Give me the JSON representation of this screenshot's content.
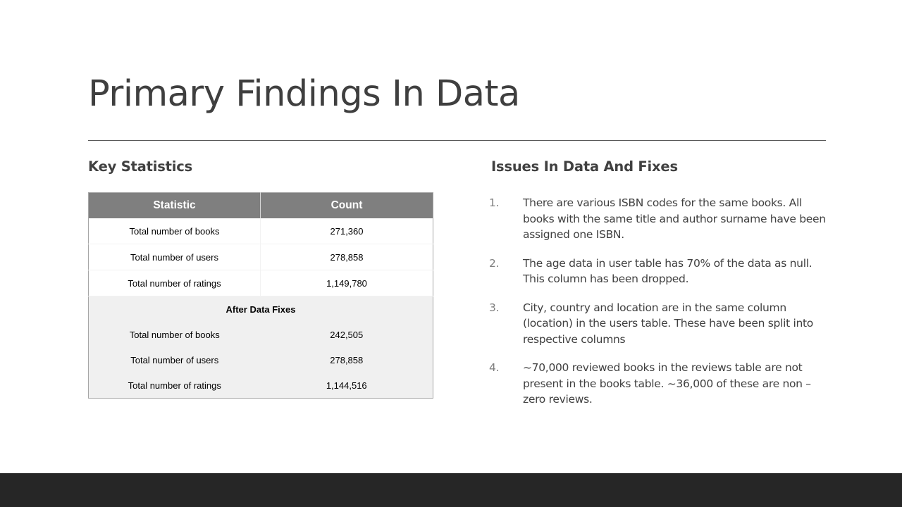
{
  "slide": {
    "title": "Primary Findings In Data"
  },
  "left": {
    "heading": "Key Statistics",
    "table": {
      "headers": [
        "Statistic",
        "Count"
      ],
      "before_rows": [
        {
          "label": "Total number  of books",
          "count": "271,360"
        },
        {
          "label": "Total number  of users",
          "count": "278,858"
        },
        {
          "label": "Total number  of ratings",
          "count": "1,149,780"
        }
      ],
      "subheading": "After Data Fixes",
      "after_rows": [
        {
          "label": "Total number  of books",
          "count": "242,505"
        },
        {
          "label": "Total number  of users",
          "count": "278,858"
        },
        {
          "label": "Total number  of ratings",
          "count": "1,144,516"
        }
      ]
    }
  },
  "right": {
    "heading": "Issues In Data And Fixes",
    "issues": [
      {
        "num": "1.",
        "text": "There are various ISBN codes for the same books. All books with the same title and author surname have been assigned one ISBN."
      },
      {
        "num": "2.",
        "text": "The age data in user table has 70% of the data as null. This column has been dropped."
      },
      {
        "num": "3.",
        "text": "City, country and location are in the same column (location) in the users table. These have been split into respective columns"
      },
      {
        "num": "4.",
        "text": "~70,000 reviewed books in the reviews table are not present in the books table. ~36,000 of these are non – zero reviews."
      }
    ]
  },
  "colors": {
    "header_fill": "#7f7f7f",
    "shaded_fill": "#f0f0f0",
    "footer_bar": "#262626",
    "title_text": "#3f3f3f"
  }
}
